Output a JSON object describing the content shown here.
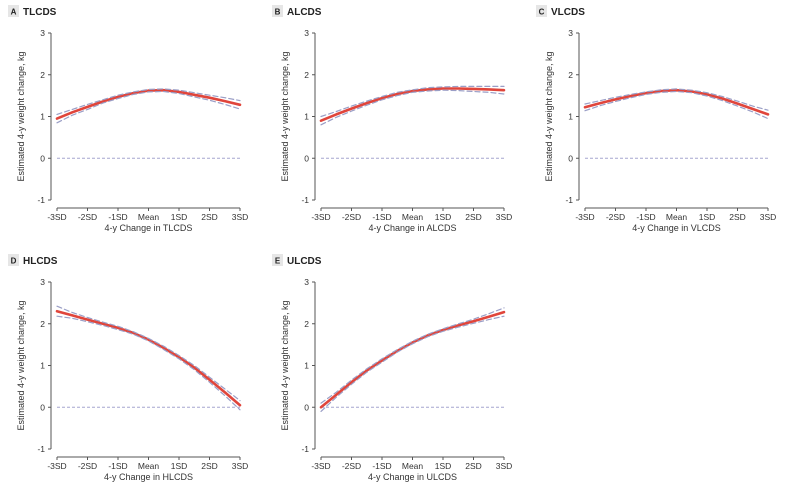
{
  "colors": {
    "main_line": "#e0453b",
    "ci_line": "#9a9ec6",
    "zero_line": "#a5a5cf",
    "axis": "#555555",
    "letter_box": "#e6e6e6"
  },
  "shared": {
    "ylabel": "Estimated 4-y weight change, kg",
    "x_ticks": [
      "-3SD",
      "-2SD",
      "-1SD",
      "Mean",
      "1SD",
      "2SD",
      "3SD"
    ],
    "y_ticks": [
      "-1",
      "0",
      "1",
      "2",
      "3"
    ]
  },
  "chart_data": [
    {
      "type": "line",
      "letter": "A",
      "title": "TLCDS",
      "xlabel": "4-y Change in TLCDS",
      "ylabel": "Estimated 4-y weight change, kg",
      "ylim": [
        -1,
        3
      ],
      "xlim": [
        -3,
        3
      ],
      "x": [
        -3,
        -2.5,
        -2,
        -1.5,
        -1,
        -0.5,
        0,
        0.5,
        1,
        1.5,
        2,
        2.5,
        3
      ],
      "series": [
        {
          "role": "estimate",
          "values": [
            0.95,
            1.1,
            1.23,
            1.36,
            1.47,
            1.56,
            1.62,
            1.63,
            1.59,
            1.52,
            1.45,
            1.37,
            1.28
          ]
        },
        {
          "role": "ci_upper",
          "values": [
            1.05,
            1.17,
            1.29,
            1.4,
            1.51,
            1.59,
            1.65,
            1.66,
            1.63,
            1.57,
            1.51,
            1.45,
            1.38
          ]
        },
        {
          "role": "ci_lower",
          "values": [
            0.85,
            1.03,
            1.17,
            1.32,
            1.43,
            1.53,
            1.59,
            1.6,
            1.55,
            1.47,
            1.39,
            1.29,
            1.18
          ]
        }
      ]
    },
    {
      "type": "line",
      "letter": "B",
      "title": "ALCDS",
      "xlabel": "4-y Change in ALCDS",
      "ylabel": "Estimated 4-y weight change, kg",
      "ylim": [
        -1,
        3
      ],
      "xlim": [
        -3,
        3
      ],
      "x": [
        -3,
        -2.5,
        -2,
        -1.5,
        -1,
        -0.5,
        0,
        0.5,
        1,
        1.5,
        2,
        2.5,
        3
      ],
      "series": [
        {
          "role": "estimate",
          "values": [
            0.9,
            1.05,
            1.19,
            1.32,
            1.44,
            1.54,
            1.61,
            1.65,
            1.67,
            1.67,
            1.66,
            1.65,
            1.63
          ]
        },
        {
          "role": "ci_upper",
          "values": [
            1.0,
            1.12,
            1.25,
            1.37,
            1.48,
            1.58,
            1.64,
            1.69,
            1.71,
            1.72,
            1.72,
            1.72,
            1.72
          ]
        },
        {
          "role": "ci_lower",
          "values": [
            0.8,
            0.98,
            1.13,
            1.27,
            1.4,
            1.5,
            1.58,
            1.61,
            1.63,
            1.62,
            1.6,
            1.58,
            1.54
          ]
        }
      ]
    },
    {
      "type": "line",
      "letter": "C",
      "title": "VLCDS",
      "xlabel": "4-y Change in VLCDS",
      "ylabel": "Estimated 4-y weight change, kg",
      "ylim": [
        -1,
        3
      ],
      "xlim": [
        -3,
        3
      ],
      "x": [
        -3,
        -2.5,
        -2,
        -1.5,
        -1,
        -0.5,
        0,
        0.5,
        1,
        1.5,
        2,
        2.5,
        3
      ],
      "series": [
        {
          "role": "estimate",
          "values": [
            1.22,
            1.32,
            1.41,
            1.49,
            1.56,
            1.61,
            1.63,
            1.6,
            1.53,
            1.43,
            1.31,
            1.18,
            1.05
          ]
        },
        {
          "role": "ci_upper",
          "values": [
            1.3,
            1.38,
            1.46,
            1.53,
            1.59,
            1.64,
            1.66,
            1.63,
            1.57,
            1.48,
            1.37,
            1.25,
            1.15
          ]
        },
        {
          "role": "ci_lower",
          "values": [
            1.14,
            1.26,
            1.36,
            1.45,
            1.53,
            1.58,
            1.6,
            1.57,
            1.49,
            1.38,
            1.25,
            1.11,
            0.95
          ]
        }
      ]
    },
    {
      "type": "line",
      "letter": "D",
      "title": "HLCDS",
      "xlabel": "4-y Change in HLCDS",
      "ylabel": "Estimated 4-y weight change, kg",
      "ylim": [
        -1,
        3
      ],
      "xlim": [
        -3,
        3
      ],
      "x": [
        -3,
        -2.5,
        -2,
        -1.5,
        -1,
        -0.5,
        0,
        0.5,
        1,
        1.5,
        2,
        2.5,
        3
      ],
      "series": [
        {
          "role": "estimate",
          "values": [
            2.3,
            2.2,
            2.1,
            2.0,
            1.9,
            1.78,
            1.62,
            1.42,
            1.2,
            0.95,
            0.66,
            0.36,
            0.05
          ]
        },
        {
          "role": "ci_upper",
          "values": [
            2.42,
            2.27,
            2.15,
            2.04,
            1.94,
            1.81,
            1.65,
            1.46,
            1.24,
            1.0,
            0.72,
            0.44,
            0.16
          ]
        },
        {
          "role": "ci_lower",
          "values": [
            2.18,
            2.13,
            2.05,
            1.96,
            1.86,
            1.75,
            1.59,
            1.38,
            1.16,
            0.9,
            0.6,
            0.28,
            -0.06
          ]
        }
      ]
    },
    {
      "type": "line",
      "letter": "E",
      "title": "ULCDS",
      "xlabel": "4-y Change in ULCDS",
      "ylabel": "Estimated 4-y weight change, kg",
      "ylim": [
        -1,
        3
      ],
      "xlim": [
        -3,
        3
      ],
      "x": [
        -3,
        -2.5,
        -2,
        -1.5,
        -1,
        -0.5,
        0,
        0.5,
        1,
        1.5,
        2,
        2.5,
        3
      ],
      "series": [
        {
          "role": "estimate",
          "values": [
            0.0,
            0.3,
            0.6,
            0.88,
            1.12,
            1.35,
            1.55,
            1.72,
            1.85,
            1.96,
            2.06,
            2.17,
            2.28
          ]
        },
        {
          "role": "ci_upper",
          "values": [
            0.1,
            0.36,
            0.65,
            0.92,
            1.16,
            1.38,
            1.58,
            1.75,
            1.88,
            2.0,
            2.11,
            2.24,
            2.38
          ]
        },
        {
          "role": "ci_lower",
          "values": [
            -0.1,
            0.24,
            0.55,
            0.84,
            1.08,
            1.32,
            1.52,
            1.69,
            1.82,
            1.92,
            2.01,
            2.1,
            2.18
          ]
        }
      ]
    }
  ]
}
